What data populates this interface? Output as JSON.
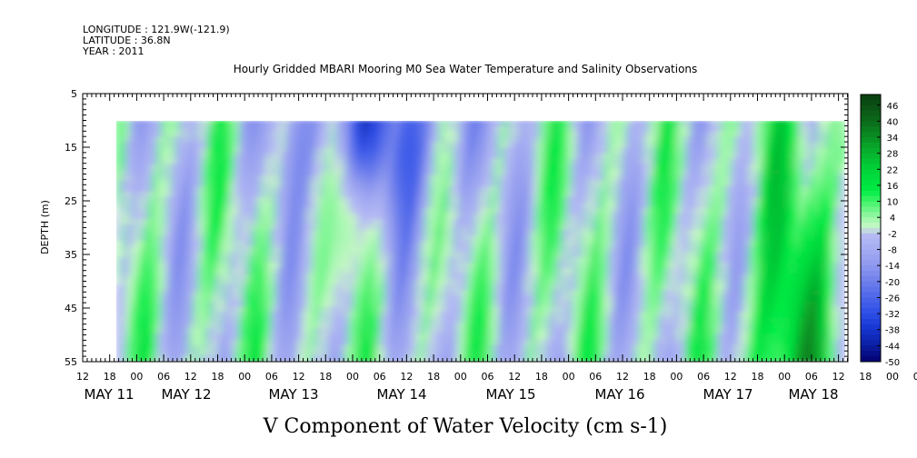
{
  "header": {
    "longitude": "LONGITUDE : 121.9W(-121.9)",
    "latitude": "LATITUDE : 36.8N",
    "year": "YEAR : 2011"
  },
  "chart_data": {
    "type": "heatmap",
    "title": "Hourly Gridded MBARI Mooring M0 Sea Water Temperature and Salinity Observations",
    "subtitle": "V Component of Water Velocity (cm s-1)",
    "ylabel": "DEPTH (m)",
    "y_ticks": [
      "5",
      "15",
      "25",
      "35",
      "45",
      "55"
    ],
    "y_range": [
      5,
      55
    ],
    "y_inverted": true,
    "x_hour_ticks": [
      "12",
      "18",
      "00",
      "06",
      "12",
      "18",
      "00",
      "06",
      "12",
      "18",
      "00",
      "06",
      "12",
      "18",
      "00",
      "06",
      "12",
      "18",
      "00",
      "06",
      "12",
      "18",
      "00",
      "06",
      "12",
      "18",
      "00",
      "06",
      "12",
      "18",
      "00",
      "06",
      "12"
    ],
    "x_date_labels": [
      "MAY 11",
      "MAY 12",
      "MAY 13",
      "MAY 14",
      "MAY 15",
      "MAY 16",
      "MAY 17",
      "MAY 18"
    ],
    "colorbar_ticks": [
      "46",
      "40",
      "34",
      "28",
      "22",
      "16",
      "10",
      "4",
      "-2",
      "-8",
      "-14",
      "-20",
      "-26",
      "-32",
      "-38",
      "-44",
      "-50"
    ],
    "colorbar_range": [
      -50,
      50
    ],
    "colors": {
      "strong_positive": "#0b4d12",
      "positive": "#00e640",
      "weak_positive": "#b3f5b8",
      "weak_negative": "#aab2f5",
      "negative": "#3a55ee",
      "strong_negative": "#00006e"
    }
  }
}
